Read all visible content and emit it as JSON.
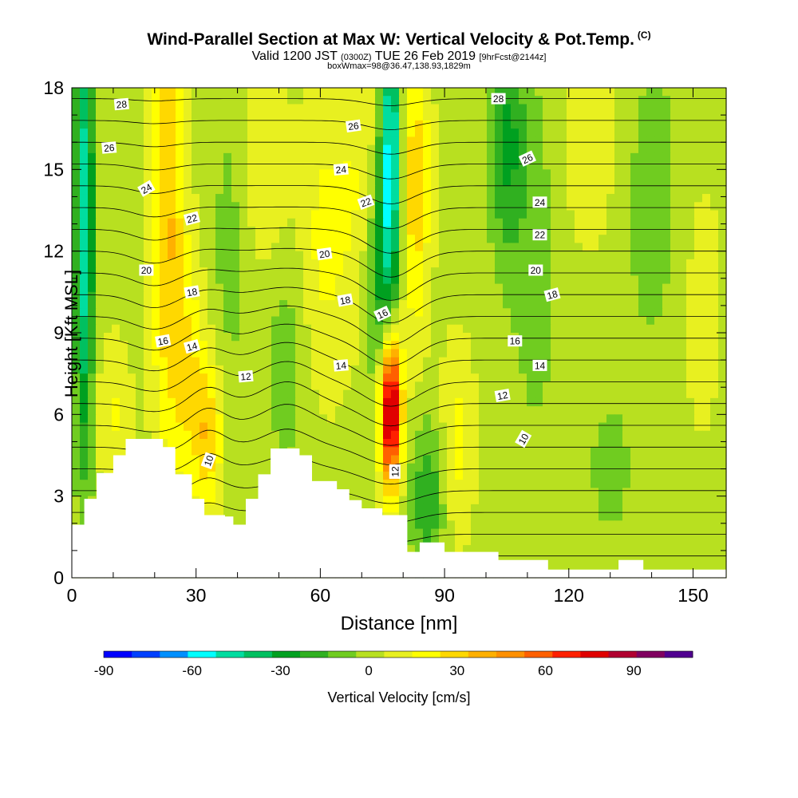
{
  "header": {
    "title": "Wind-Parallel Section at Max W: Vertical Velocity & Pot.Temp.",
    "title_mark": "(C)",
    "valid_prefix": "Valid 1200 JST",
    "valid_utc": "(0300Z)",
    "valid_date": "TUE 26 Feb 2019",
    "forecast": "[9hrFcst@2144z]",
    "box_info": "boxWmax=98@36.47,138.93,1829m"
  },
  "chart_data": {
    "type": "heatmap",
    "xlabel": "Distance [nm]",
    "ylabel": "Height [Kft MSL]",
    "xlim": [
      0,
      158
    ],
    "ylim": [
      0,
      18
    ],
    "xticks": [
      0,
      30,
      60,
      90,
      120,
      150
    ],
    "yticks": [
      0,
      3,
      6,
      9,
      12,
      15,
      18
    ],
    "colorbar": {
      "label": "Vertical Velocity [cm/s]",
      "range": [
        -90,
        110
      ],
      "step": 10,
      "ticks": [
        -90,
        -60,
        -30,
        0,
        30,
        60,
        90
      ],
      "colors": [
        "#0000ff",
        "#0040ff",
        "#0090ff",
        "#00ffff",
        "#00dda0",
        "#00c060",
        "#00a020",
        "#30b020",
        "#70cc20",
        "#b8e020",
        "#e8f020",
        "#ffff00",
        "#ffd800",
        "#ffb000",
        "#ff9000",
        "#ff6000",
        "#ff2000",
        "#e00000",
        "#b00030",
        "#800060",
        "#500090"
      ]
    },
    "terrain_kft": [
      [
        0,
        1.95
      ],
      [
        3,
        1.95
      ],
      [
        3,
        2.9
      ],
      [
        6,
        2.9
      ],
      [
        6,
        3.85
      ],
      [
        10,
        3.85
      ],
      [
        10,
        4.5
      ],
      [
        13,
        4.5
      ],
      [
        13,
        5.1
      ],
      [
        22,
        5.1
      ],
      [
        22,
        4.8
      ],
      [
        25,
        4.8
      ],
      [
        25,
        3.8
      ],
      [
        29,
        3.8
      ],
      [
        29,
        2.9
      ],
      [
        32,
        2.9
      ],
      [
        32,
        2.3
      ],
      [
        37,
        2.3
      ],
      [
        37,
        2.25
      ],
      [
        39,
        2.25
      ],
      [
        39,
        1.95
      ],
      [
        42,
        1.95
      ],
      [
        42,
        2.9
      ],
      [
        45,
        2.9
      ],
      [
        45,
        3.8
      ],
      [
        48,
        3.8
      ],
      [
        48,
        4.75
      ],
      [
        55,
        4.75
      ],
      [
        55,
        4.5
      ],
      [
        58,
        4.5
      ],
      [
        58,
        3.55
      ],
      [
        64,
        3.55
      ],
      [
        64,
        3.25
      ],
      [
        67,
        3.25
      ],
      [
        67,
        2.85
      ],
      [
        70,
        2.85
      ],
      [
        70,
        2.55
      ],
      [
        75,
        2.55
      ],
      [
        75,
        2.3
      ],
      [
        81,
        2.3
      ],
      [
        81,
        0.95
      ],
      [
        84,
        0.95
      ],
      [
        84,
        1.3
      ],
      [
        90,
        1.3
      ],
      [
        90,
        0.95
      ],
      [
        103,
        0.95
      ],
      [
        103,
        0.65
      ],
      [
        115,
        0.65
      ],
      [
        115,
        0.3
      ],
      [
        132,
        0.3
      ],
      [
        132,
        0.65
      ],
      [
        138,
        0.65
      ],
      [
        138,
        0.3
      ],
      [
        158,
        0.3
      ]
    ],
    "w_features": [
      {
        "x": 3,
        "y": 13,
        "w": -55,
        "sx": 1.6,
        "sy": 6
      },
      {
        "x": 23,
        "y": 14,
        "w": 35,
        "sx": 3,
        "sy": 6
      },
      {
        "x": 28,
        "y": 7.5,
        "w": 22,
        "sx": 3,
        "sy": 3
      },
      {
        "x": 33,
        "y": 5.2,
        "w": 30,
        "sx": 2.5,
        "sy": 2
      },
      {
        "x": 38,
        "y": 12,
        "w": -10,
        "sx": 3,
        "sy": 4
      },
      {
        "x": 47,
        "y": 15,
        "w": 12,
        "sx": 4,
        "sy": 3
      },
      {
        "x": 52,
        "y": 8,
        "w": -12,
        "sx": 4,
        "sy": 3
      },
      {
        "x": 60,
        "y": 12,
        "w": 15,
        "sx": 4,
        "sy": 4
      },
      {
        "x": 70,
        "y": 14,
        "w": 15,
        "sx": 5,
        "sy": 4
      },
      {
        "x": 77,
        "y": 15.5,
        "w": -65,
        "sx": 1.8,
        "sy": 4
      },
      {
        "x": 74,
        "y": 11,
        "w": -30,
        "sx": 2.5,
        "sy": 3
      },
      {
        "x": 83,
        "y": 14.5,
        "w": 30,
        "sx": 2.5,
        "sy": 4
      },
      {
        "x": 77,
        "y": 6.2,
        "w": 100,
        "sx": 1.8,
        "sy": 2
      },
      {
        "x": 86,
        "y": 3,
        "w": -25,
        "sx": 3,
        "sy": 2
      },
      {
        "x": 93,
        "y": 5,
        "w": 18,
        "sx": 3,
        "sy": 2.5
      },
      {
        "x": 105,
        "y": 16,
        "w": -28,
        "sx": 3,
        "sy": 3
      },
      {
        "x": 112,
        "y": 12,
        "w": -12,
        "sx": 4,
        "sy": 5
      },
      {
        "x": 125,
        "y": 16,
        "w": 10,
        "sx": 6,
        "sy": 3
      },
      {
        "x": 140,
        "y": 14,
        "w": -12,
        "sx": 5,
        "sy": 4
      },
      {
        "x": 152,
        "y": 10,
        "w": 8,
        "sx": 4,
        "sy": 4
      },
      {
        "x": 130,
        "y": 4,
        "w": -10,
        "sx": 4,
        "sy": 2
      },
      {
        "x": 10,
        "y": 6,
        "w": 15,
        "sx": 3,
        "sy": 2
      }
    ],
    "theta_ranges": {
      "start": 6,
      "end": 30,
      "step": 1
    },
    "theta_labels": [
      {
        "text": "28",
        "x": 12,
        "y": 17.4,
        "rot": -5
      },
      {
        "text": "26",
        "x": 9,
        "y": 15.8,
        "rot": -5
      },
      {
        "text": "24",
        "x": 18,
        "y": 14.3,
        "rot": -30
      },
      {
        "text": "22",
        "x": 29,
        "y": 13.2,
        "rot": -15
      },
      {
        "text": "20",
        "x": 18,
        "y": 11.3,
        "rot": 0
      },
      {
        "text": "18",
        "x": 29,
        "y": 10.5,
        "rot": -10
      },
      {
        "text": "16",
        "x": 22,
        "y": 8.7,
        "rot": -10
      },
      {
        "text": "14",
        "x": 29,
        "y": 8.5,
        "rot": -15
      },
      {
        "text": "12",
        "x": 42,
        "y": 7.4,
        "rot": -5
      },
      {
        "text": "10",
        "x": 33,
        "y": 4.3,
        "rot": -70
      },
      {
        "text": "28",
        "x": 103,
        "y": 17.6,
        "rot": 0
      },
      {
        "text": "26",
        "x": 68,
        "y": 16.6,
        "rot": -8
      },
      {
        "text": "24",
        "x": 65,
        "y": 15,
        "rot": -5
      },
      {
        "text": "22",
        "x": 71,
        "y": 13.8,
        "rot": -20
      },
      {
        "text": "20",
        "x": 61,
        "y": 11.9,
        "rot": -8
      },
      {
        "text": "18",
        "x": 66,
        "y": 10.2,
        "rot": -10
      },
      {
        "text": "16",
        "x": 75,
        "y": 9.7,
        "rot": -25
      },
      {
        "text": "14",
        "x": 65,
        "y": 7.8,
        "rot": -5
      },
      {
        "text": "12",
        "x": 78,
        "y": 3.9,
        "rot": -90
      },
      {
        "text": "26",
        "x": 110,
        "y": 15.4,
        "rot": -25
      },
      {
        "text": "24",
        "x": 113,
        "y": 13.8,
        "rot": 0
      },
      {
        "text": "22",
        "x": 113,
        "y": 12.6,
        "rot": 0
      },
      {
        "text": "20",
        "x": 112,
        "y": 11.3,
        "rot": 0
      },
      {
        "text": "18",
        "x": 116,
        "y": 10.4,
        "rot": -15
      },
      {
        "text": "16",
        "x": 107,
        "y": 8.7,
        "rot": 0
      },
      {
        "text": "14",
        "x": 113,
        "y": 7.8,
        "rot": 0
      },
      {
        "text": "12",
        "x": 104,
        "y": 6.7,
        "rot": -10
      },
      {
        "text": "10",
        "x": 109,
        "y": 5.1,
        "rot": -60
      }
    ]
  }
}
